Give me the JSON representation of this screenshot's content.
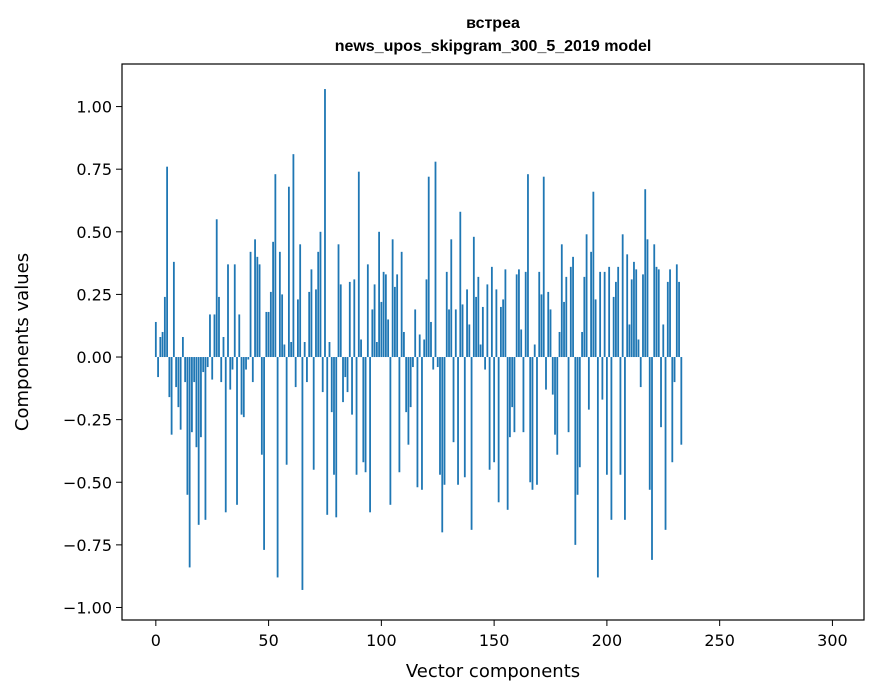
{
  "chart_data": {
    "type": "bar",
    "title": "встреа",
    "subtitle": "news_upos_skipgram_300_5_2019 model",
    "xlabel": "Vector components",
    "ylabel": "Components values",
    "xlim": [
      -15,
      314
    ],
    "ylim": [
      -1.05,
      1.17
    ],
    "xticks": [
      0,
      50,
      100,
      150,
      200,
      250,
      300
    ],
    "xtick_labels": [
      "0",
      "50",
      "100",
      "150",
      "200",
      "250",
      "300"
    ],
    "yticks": [
      1.0,
      0.75,
      0.5,
      0.25,
      0.0,
      -0.25,
      -0.5,
      -0.75,
      -1.0
    ],
    "ytick_labels": [
      "1.00",
      "0.75",
      "0.50",
      "0.25",
      "0.00",
      "−0.25",
      "−0.50",
      "−0.75",
      "−1.00"
    ],
    "bar_color": "#1f77b4",
    "grid": false,
    "values": [
      0.14,
      -0.08,
      0.08,
      0.1,
      0.24,
      0.76,
      -0.16,
      -0.31,
      0.38,
      -0.12,
      -0.2,
      -0.29,
      0.08,
      -0.1,
      -0.55,
      -0.84,
      -0.3,
      -0.1,
      -0.36,
      -0.67,
      -0.32,
      -0.06,
      -0.65,
      -0.04,
      0.17,
      -0.09,
      0.17,
      0.55,
      0.24,
      -0.1,
      0.08,
      -0.62,
      0.37,
      -0.13,
      -0.05,
      0.37,
      -0.59,
      0.17,
      -0.23,
      -0.24,
      -0.05,
      -0.01,
      0.42,
      -0.1,
      0.47,
      0.4,
      0.37,
      -0.39,
      -0.77,
      0.18,
      0.18,
      0.26,
      0.46,
      0.73,
      -0.88,
      0.42,
      0.25,
      0.05,
      -0.43,
      0.68,
      0.06,
      0.81,
      -0.12,
      0.23,
      0.45,
      -0.93,
      0.06,
      -0.1,
      0.26,
      0.35,
      -0.45,
      0.27,
      0.42,
      0.5,
      -0.14,
      1.07,
      -0.63,
      0.06,
      -0.22,
      -0.47,
      -0.64,
      0.45,
      0.29,
      -0.18,
      -0.08,
      -0.14,
      0.3,
      -0.23,
      0.31,
      -0.47,
      0.74,
      0.07,
      -0.42,
      -0.46,
      0.37,
      -0.62,
      0.19,
      0.29,
      0.06,
      0.5,
      0.22,
      0.34,
      0.33,
      0.15,
      -0.59,
      0.47,
      0.28,
      0.33,
      -0.46,
      0.42,
      0.1,
      -0.22,
      -0.35,
      -0.2,
      -0.04,
      0.19,
      -0.52,
      0.09,
      -0.53,
      0.07,
      0.31,
      0.72,
      0.14,
      -0.05,
      0.78,
      -0.04,
      -0.47,
      -0.7,
      -0.51,
      0.34,
      0.19,
      0.47,
      -0.34,
      0.19,
      -0.51,
      0.58,
      0.21,
      -0.48,
      0.27,
      0.13,
      -0.69,
      0.48,
      0.24,
      0.32,
      0.05,
      0.2,
      -0.05,
      0.29,
      -0.45,
      0.36,
      -0.42,
      0.27,
      -0.58,
      0.2,
      0.23,
      0.35,
      -0.61,
      -0.32,
      -0.2,
      -0.3,
      0.33,
      0.35,
      0.11,
      -0.3,
      0.34,
      0.73,
      -0.5,
      -0.53,
      0.05,
      -0.51,
      0.34,
      0.25,
      0.72,
      -0.13,
      0.26,
      0.19,
      -0.15,
      -0.31,
      -0.39,
      0.1,
      0.45,
      0.22,
      0.32,
      -0.3,
      0.36,
      0.4,
      -0.75,
      -0.55,
      -0.44,
      0.1,
      0.32,
      0.49,
      -0.21,
      0.42,
      0.66,
      0.23,
      -0.88,
      0.34,
      -0.17,
      0.34,
      -0.47,
      0.36,
      -0.65,
      0.24,
      0.3,
      0.36,
      -0.47,
      0.49,
      -0.65,
      0.41,
      0.13,
      0.31,
      0.38,
      0.35,
      0.07,
      -0.12,
      0.33,
      0.67,
      0.47,
      -0.53,
      -0.81,
      0.45,
      0.36,
      0.35,
      -0.28,
      0.13,
      -0.69,
      0.3,
      0.35,
      -0.42,
      -0.1,
      0.37,
      0.3,
      -0.35
    ]
  }
}
